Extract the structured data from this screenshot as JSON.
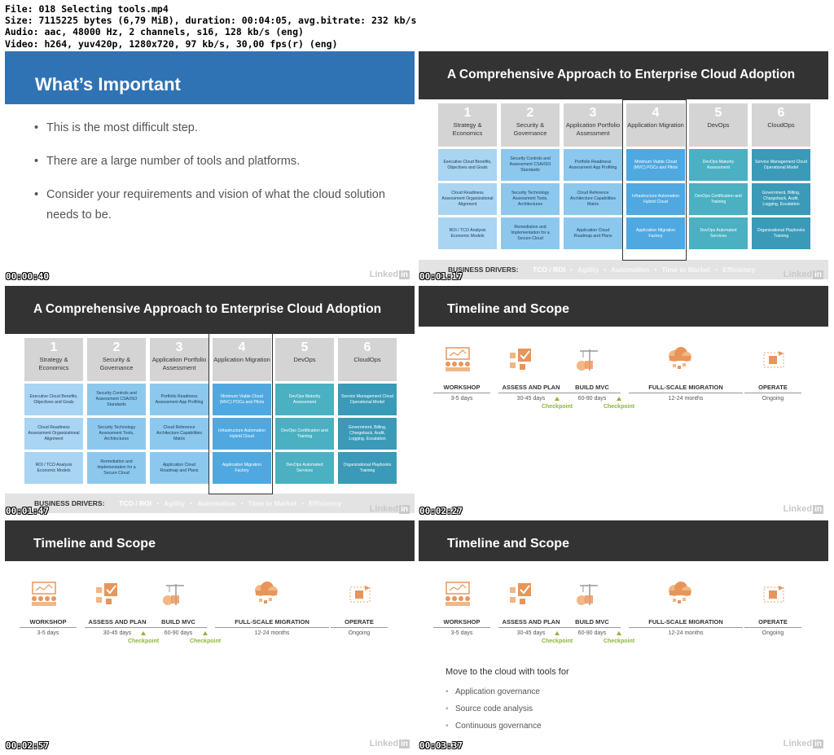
{
  "file_info": {
    "line1": "File: 018 Selecting tools.mp4",
    "line2": "Size: 7115225 bytes (6,79 MiB), duration: 00:04:05, avg.bitrate: 232 kb/s",
    "line3": "Audio: aac, 48000 Hz, 2 channels, s16, 128 kb/s (eng)",
    "line4": "Video: h264, yuv420p, 1280x720, 97 kb/s, 30,00 fps(r) (eng)"
  },
  "watermark": "Linked",
  "watermark_in": "in",
  "frames": {
    "f1": {
      "timecode": "00:00:40",
      "title": "What’s Important",
      "bullets": [
        "This is the most difficult step.",
        "There are a large number of tools and platforms.",
        "Consider your requirements and vision of what the cloud solution needs to be."
      ]
    },
    "f2": {
      "timecode": "00:01:17"
    },
    "f3": {
      "timecode": "00:01:47"
    },
    "f4": {
      "timecode": "00:02:27"
    },
    "f5": {
      "timecode": "00:02:57"
    },
    "f6": {
      "timecode": "00:03:37"
    }
  },
  "framework": {
    "title": "A Comprehensive Approach to Enterprise Cloud Adoption",
    "columns": [
      {
        "num": "1",
        "title": "Strategy & Economics",
        "cells": [
          "Executive Cloud Benefits, Objectives and Goals",
          "Cloud Readiness Assessment Organizational Alignment",
          "ROI / TCO Analysis Economic Models"
        ]
      },
      {
        "num": "2",
        "title": "Security & Governance",
        "cells": [
          "Security Controls and Assessment CSA/ISO Standards",
          "Security Technology Assessment Tools, Architectures",
          "Remediation and Implementation for a Secure Cloud"
        ]
      },
      {
        "num": "3",
        "title": "Application Portfolio Assessment",
        "cells": [
          "Portfolio Readiness Assessment App Profiling",
          "Cloud Reference Architecture Capabilities Matrix",
          "Application Cloud Roadmap and Plans"
        ]
      },
      {
        "num": "4",
        "title": "Application Migration",
        "cells": [
          "Minimum Viable Cloud (MVC) POCs and Pilots",
          "Infrastructure Automation Hybrid Cloud",
          "Application Migration Factory"
        ]
      },
      {
        "num": "5",
        "title": "DevOps",
        "cells": [
          "DevOps Maturity Assessment",
          "DevOps Certification and Training",
          "DevOps Automated Services"
        ]
      },
      {
        "num": "6",
        "title": "CloudOps",
        "cells": [
          "Service Management Cloud Operational Model",
          "Government, Billing, Chargeback, Audit, Logging, Escalation",
          "Organizational Playbooks Training"
        ]
      }
    ],
    "drivers_label": "BUSINESS DRIVERS:",
    "drivers": [
      "TCO / ROI",
      "•",
      "Agility",
      "•",
      "Automation",
      "•",
      "Time to Market",
      "•",
      "Efficiency"
    ],
    "colors": {
      "c1": "#a9d4f2",
      "c2": "#8cc8ee",
      "c3": "#7fc0ea",
      "c4": "#4fa8e0",
      "c5": "#46a9bf",
      "c6": "#3b98b6"
    }
  },
  "timeline": {
    "title": "Timeline and Scope",
    "phases": [
      {
        "label": "WORKSHOP",
        "duration": "3-5 days",
        "icon": "workshop-icon"
      },
      {
        "label": "ASSESS AND PLAN",
        "duration": "30-45 days",
        "icon": "assess-plan-icon"
      },
      {
        "label": "BUILD MVC",
        "duration": "60-90 days",
        "icon": "build-mvc-icon"
      },
      {
        "label": "FULL-SCALE MIGRATION",
        "duration": "12-24 months",
        "icon": "migration-cloud-icon"
      },
      {
        "label": "OPERATE",
        "duration": "Ongoing",
        "icon": "operate-icon"
      }
    ],
    "checkpoint": "Checkpoint",
    "move_title": "Move to the cloud with tools for",
    "move_items": [
      "Application governance",
      "Source code analysis",
      "Continuous governance"
    ]
  }
}
